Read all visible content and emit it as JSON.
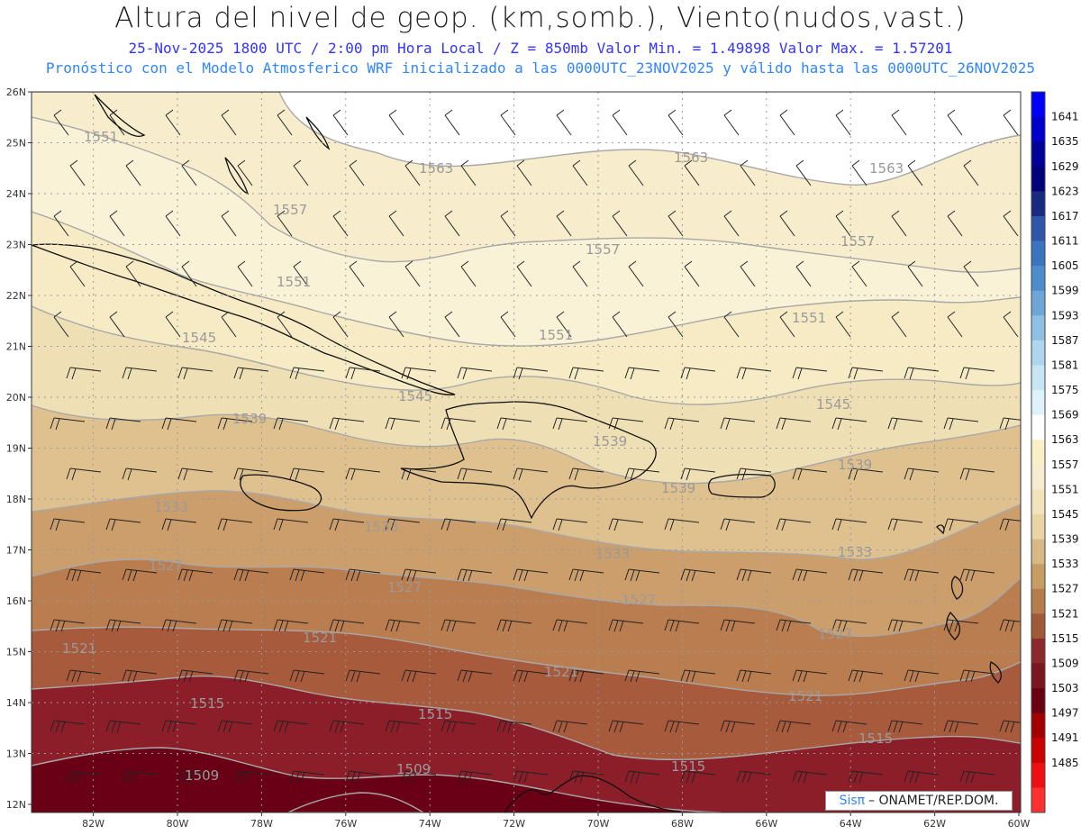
{
  "header": {
    "title": "Altura del nivel de geop. (km,somb.), Viento(nudos,vast.)",
    "subtitle_1": "25-Nov-2025  1800 UTC / 2:00 pm Hora Local / Z = 850mb    Valor Min. = 1.49898  Valor Max. = 1.57201",
    "subtitle_2": "Pronóstico con el Modelo Atmosferico WRF inicializado a las 0000UTC_23NOV2025 y válido hasta las  0000UTC_26NOV2025"
  },
  "credit": {
    "brand": "Sisπ",
    "text": "– ONAMET/REP.DOM."
  },
  "map": {
    "lat_ticks": [
      "26N",
      "25N",
      "24N",
      "23N",
      "22N",
      "21N",
      "20N",
      "19N",
      "18N",
      "17N",
      "16N",
      "15N",
      "14N",
      "13N",
      "12N"
    ],
    "lon_ticks": [
      "82W",
      "80W",
      "78W",
      "76W",
      "74W",
      "72W",
      "70W",
      "68W",
      "66W",
      "64W",
      "62W",
      "60W"
    ],
    "contour_labels": [
      {
        "text": "1563"
      },
      {
        "text": "1563"
      },
      {
        "text": "1563"
      },
      {
        "text": "1557"
      },
      {
        "text": "1557"
      },
      {
        "text": "1557"
      },
      {
        "text": "1551"
      },
      {
        "text": "1551"
      },
      {
        "text": "1551"
      },
      {
        "text": "1551"
      },
      {
        "text": "1545"
      },
      {
        "text": "1545"
      },
      {
        "text": "1545"
      },
      {
        "text": "1539"
      },
      {
        "text": "1539"
      },
      {
        "text": "1539"
      },
      {
        "text": "1539"
      },
      {
        "text": "1533"
      },
      {
        "text": "1533"
      },
      {
        "text": "1533"
      },
      {
        "text": "1533"
      },
      {
        "text": "1527"
      },
      {
        "text": "1527"
      },
      {
        "text": "1527"
      },
      {
        "text": "1527"
      },
      {
        "text": "1521"
      },
      {
        "text": "1521"
      },
      {
        "text": "1521"
      },
      {
        "text": "1521"
      },
      {
        "text": "1515"
      },
      {
        "text": "1515"
      },
      {
        "text": "1515"
      },
      {
        "text": "1515"
      },
      {
        "text": "1509"
      },
      {
        "text": "1509"
      }
    ]
  },
  "colorbar": {
    "levels": [
      "1641",
      "1635",
      "1629",
      "1623",
      "1617",
      "1611",
      "1605",
      "1599",
      "1593",
      "1587",
      "1581",
      "1575",
      "1569",
      "1563",
      "1557",
      "1551",
      "1545",
      "1539",
      "1533",
      "1527",
      "1521",
      "1515",
      "1509",
      "1503",
      "1497",
      "1491",
      "1485"
    ],
    "colors": [
      "#0000ff",
      "#0000cc",
      "#00009a",
      "#00007a",
      "#1a2a80",
      "#2f56a8",
      "#3b74bf",
      "#4f8ccc",
      "#6ea6d8",
      "#8fc0e4",
      "#aed6ee",
      "#c6e6f6",
      "#ddf2fb",
      "#ffffff",
      "#faf0c8",
      "#f8ecd0",
      "#f3e3bb",
      "#e9d4a6",
      "#d8b985",
      "#c89d63",
      "#b57d4d",
      "#a15a38",
      "#8b2a2c",
      "#7a1620",
      "#6a0010",
      "#a50000",
      "#cc0000",
      "#ee1010",
      "#ff3030"
    ],
    "field_colors": {
      "lt_1503": "#6a0015",
      "b1503_1509": "#6a0015",
      "b1509_1515": "#8b1e28",
      "b1515_1521": "#a85a3c",
      "b1521_1527": "#ba7d4f",
      "b1527_1533": "#cc9e6c",
      "b1533_1539": "#dfc18f",
      "b1539_1545": "#efdfb4",
      "b1545_1551": "#f6ebc5",
      "b1551_1557": "#faf2d6",
      "b1557_1563": "#f7edcc",
      "gt_1563": "#ffffff"
    }
  }
}
